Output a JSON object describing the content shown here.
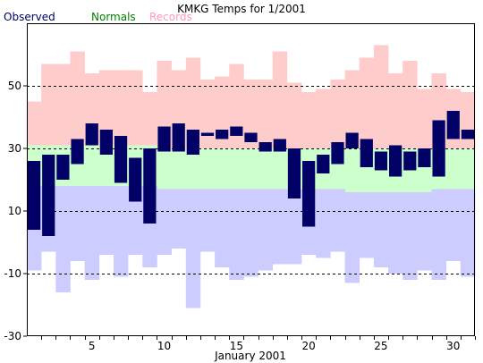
{
  "chart_data": {
    "type": "bar",
    "title": "KMKG Temps for 1/2001",
    "xlabel": "January 2001",
    "ylabel": "",
    "ylim": [
      -30,
      70
    ],
    "xlim": [
      0.5,
      31.5
    ],
    "yticks": [
      -30,
      -10,
      10,
      30,
      50
    ],
    "xticks": [
      5,
      10,
      15,
      20,
      25,
      30
    ],
    "grid_y": [
      -10,
      10,
      30,
      50
    ],
    "grid": "dashed horizontal",
    "legend": {
      "position": "top-left",
      "entries": [
        {
          "label": "Observed",
          "color": "#000066"
        },
        {
          "label": "Normals",
          "color": "#008000"
        },
        {
          "label": "Records",
          "color": "#ff99bb"
        }
      ]
    },
    "colors": {
      "record_band": "#ffcccc",
      "normal_band": "#ccffcc",
      "below_normal_band": "#ccccff",
      "observed_bar": "#000066"
    },
    "days": [
      1,
      2,
      3,
      4,
      5,
      6,
      7,
      8,
      9,
      10,
      11,
      12,
      13,
      14,
      15,
      16,
      17,
      18,
      19,
      20,
      21,
      22,
      23,
      24,
      25,
      26,
      27,
      28,
      29,
      30,
      31
    ],
    "series": [
      {
        "name": "Records",
        "role": "record_high",
        "values": [
          45,
          57,
          57,
          61,
          54,
          55,
          55,
          55,
          48,
          58,
          55,
          59,
          52,
          53,
          57,
          52,
          52,
          61,
          51,
          48,
          49,
          52,
          55,
          59,
          63,
          54,
          58,
          49,
          54,
          49,
          48
        ]
      },
      {
        "name": "Normals",
        "role": "normal_high",
        "values": [
          31,
          31,
          31,
          31,
          31,
          31,
          31,
          31,
          31,
          30,
          30,
          30,
          30,
          30,
          30,
          30,
          30,
          30,
          30,
          30,
          30,
          30,
          30,
          30,
          30,
          30,
          30,
          30,
          30,
          30,
          30
        ]
      },
      {
        "name": "Normals",
        "role": "normal_low",
        "values": [
          18,
          18,
          18,
          18,
          18,
          18,
          18,
          18,
          18,
          17,
          17,
          17,
          17,
          17,
          17,
          17,
          17,
          17,
          17,
          17,
          17,
          17,
          16,
          16,
          16,
          16,
          16,
          16,
          17,
          17,
          17
        ]
      },
      {
        "name": "Records",
        "role": "record_low",
        "values": [
          -9,
          -3,
          -16,
          -6,
          -12,
          -4,
          -11,
          -4,
          -8,
          -4,
          -2,
          -21,
          -3,
          -8,
          -12,
          -11,
          -9,
          -7,
          -7,
          -4,
          -5,
          -3,
          -13,
          -5,
          -8,
          -10,
          -12,
          -9,
          -12,
          -6,
          -11
        ]
      },
      {
        "name": "Observed",
        "role": "observed_high",
        "values": [
          26,
          28,
          28,
          33,
          38,
          36,
          34,
          27,
          30,
          37,
          38,
          36,
          35,
          36,
          37,
          35,
          32,
          33,
          30,
          26,
          28,
          32,
          35,
          33,
          29,
          31,
          29,
          30,
          39,
          42,
          36
        ]
      },
      {
        "name": "Observed",
        "role": "observed_low",
        "values": [
          4,
          2,
          20,
          25,
          31,
          28,
          19,
          13,
          6,
          29,
          29,
          28,
          34,
          33,
          34,
          32,
          29,
          29,
          14,
          5,
          22,
          25,
          30,
          24,
          23,
          21,
          23,
          24,
          21,
          33,
          33
        ]
      }
    ]
  }
}
